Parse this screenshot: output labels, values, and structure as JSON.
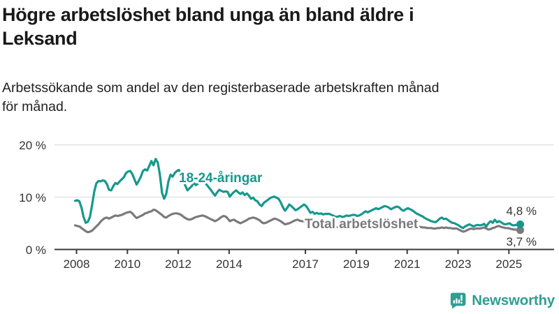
{
  "chart_data": {
    "type": "line",
    "title": "Högre arbetslöshet bland unga än bland äldre i\nLeksand",
    "subtitle": "Arbetssökande som andel av den registerbaserade arbetskraften månad\nför månad.",
    "unit": "%",
    "frequency": "monthly",
    "x_start": "2008-01",
    "x_end": "2025-07",
    "ylim": [
      0,
      22
    ],
    "grid": "horizontal",
    "y_ticks": [
      0,
      10,
      20
    ],
    "y_tick_labels": [
      "0 %",
      "10 %",
      "20 %"
    ],
    "x_ticks": [
      {
        "label": "2008",
        "year": 2008
      },
      {
        "label": "2010",
        "year": 2010
      },
      {
        "label": "2012",
        "year": 2012
      },
      {
        "label": "2014",
        "year": 2014
      },
      {
        "label": "2017",
        "year": 2017
      },
      {
        "label": "2019",
        "year": 2019
      },
      {
        "label": "2021",
        "year": 2021
      },
      {
        "label": "2023",
        "year": 2023
      },
      {
        "label": "2025",
        "year": 2025
      }
    ],
    "series": [
      {
        "name": "Total arbetslöshet",
        "color": "#7a7a7e",
        "end_label": "3,7 %",
        "end_value": 3.7,
        "values": [
          4.6,
          4.5,
          4.4,
          4.1,
          3.8,
          3.5,
          3.3,
          3.4,
          3.6,
          4.0,
          4.4,
          4.8,
          5.3,
          5.7,
          6.0,
          6.1,
          5.9,
          6.1,
          6.3,
          6.5,
          6.4,
          6.5,
          6.6,
          6.8,
          7.0,
          7.1,
          7.2,
          6.9,
          6.4,
          6.0,
          6.2,
          6.4,
          6.6,
          6.9,
          7.0,
          7.2,
          7.3,
          7.6,
          7.5,
          7.2,
          6.9,
          6.6,
          6.2,
          6.1,
          6.4,
          6.6,
          6.8,
          6.9,
          6.9,
          6.8,
          6.6,
          6.3,
          6.0,
          5.8,
          5.7,
          5.8,
          6.0,
          6.2,
          6.3,
          6.4,
          6.5,
          6.4,
          6.2,
          6.0,
          5.8,
          5.6,
          5.4,
          5.6,
          5.9,
          6.2,
          6.4,
          6.3,
          5.9,
          5.4,
          5.6,
          5.7,
          5.4,
          5.2,
          5.0,
          5.2,
          5.4,
          5.6,
          5.9,
          6.0,
          6.1,
          6.0,
          5.8,
          5.6,
          5.2,
          5.0,
          5.1,
          5.3,
          5.5,
          5.7,
          5.9,
          5.8,
          5.6,
          5.4,
          5.1,
          4.8,
          4.9,
          5.0,
          5.2,
          5.4,
          5.6,
          5.7,
          5.5,
          5.4,
          5.4,
          5.5,
          5.3,
          5.1,
          5.0,
          4.9,
          4.8,
          4.7,
          4.8,
          4.9,
          4.8,
          4.7,
          4.6,
          4.5,
          4.4,
          4.3,
          4.3,
          4.2,
          4.2,
          4.3,
          4.4,
          4.5,
          4.5,
          4.6,
          4.6,
          4.5,
          4.5,
          4.4,
          4.4,
          4.5,
          4.6,
          4.6,
          4.7,
          4.8,
          4.8,
          4.9,
          5.0,
          5.1,
          5.3,
          5.5,
          5.5,
          5.4,
          5.3,
          5.2,
          5.2,
          5.1,
          5.0,
          5.0,
          5.0,
          4.9,
          4.8,
          4.7,
          4.6,
          4.5,
          4.4,
          4.3,
          4.2,
          4.2,
          4.1,
          4.1,
          4.1,
          4.0,
          4.0,
          4.1,
          4.1,
          4.2,
          4.1,
          4.2,
          4.1,
          4.1,
          4.0,
          4.0,
          4.0,
          3.8,
          3.6,
          3.4,
          3.5,
          3.7,
          3.9,
          4.0,
          3.9,
          4.0,
          4.0,
          4.0,
          4.1,
          4.2,
          4.0,
          3.8,
          3.9,
          4.1,
          4.2,
          4.4,
          4.5,
          4.3,
          4.2,
          4.1,
          4.1,
          4.0,
          3.9,
          3.8,
          3.8,
          3.7,
          3.7
        ]
      },
      {
        "name": "18-24-åringar",
        "color": "#16988c",
        "end_label": "4,8 %",
        "end_value": 4.8,
        "values": [
          9.3,
          9.4,
          9.2,
          8.0,
          6.2,
          5.1,
          5.3,
          6.2,
          8.5,
          11.0,
          12.6,
          13.1,
          13.0,
          13.2,
          13.1,
          12.5,
          11.4,
          11.3,
          12.1,
          12.7,
          12.5,
          13.0,
          13.4,
          13.8,
          14.6,
          14.9,
          15.0,
          14.4,
          13.4,
          12.4,
          13.1,
          13.9,
          15.0,
          15.3,
          15.1,
          16.0,
          16.9,
          16.1,
          17.3,
          16.6,
          14.3,
          10.8,
          9.7,
          10.6,
          13.0,
          14.3,
          13.9,
          14.6,
          15.0,
          15.2,
          14.3,
          13.3,
          12.2,
          11.3,
          11.7,
          12.1,
          12.7,
          12.3,
          12.6,
          12.8,
          13.0,
          12.8,
          12.4,
          11.9,
          11.4,
          10.8,
          10.3,
          10.9,
          11.4,
          11.2,
          11.0,
          11.1,
          11.0,
          10.1,
          10.6,
          11.0,
          11.3,
          10.9,
          10.6,
          10.9,
          10.4,
          10.7,
          10.3,
          9.7,
          9.9,
          9.4,
          9.2,
          8.6,
          8.3,
          8.9,
          9.2,
          9.5,
          9.8,
          10.0,
          10.1,
          9.9,
          9.7,
          9.0,
          8.1,
          7.4,
          7.9,
          8.6,
          8.3,
          7.9,
          7.5,
          7.7,
          8.0,
          8.3,
          8.6,
          8.3,
          7.7,
          7.0,
          7.2,
          6.8,
          7.0,
          6.8,
          6.9,
          6.7,
          6.8,
          6.8,
          6.8,
          6.6,
          6.4,
          6.2,
          6.3,
          6.4,
          6.2,
          6.3,
          6.5,
          6.4,
          6.5,
          6.6,
          6.6,
          6.4,
          6.5,
          6.7,
          7.0,
          7.3,
          7.1,
          7.3,
          7.5,
          7.7,
          7.9,
          7.7,
          7.9,
          8.1,
          8.3,
          8.2,
          8.0,
          7.7,
          7.9,
          8.1,
          8.2,
          8.0,
          7.6,
          7.4,
          7.7,
          7.9,
          7.7,
          7.5,
          7.2,
          6.9,
          6.7,
          6.5,
          6.3,
          6.0,
          5.8,
          5.6,
          5.4,
          5.3,
          5.2,
          5.5,
          5.9,
          6.1,
          5.8,
          5.9,
          5.6,
          5.3,
          5.1,
          5.0,
          4.8,
          4.6,
          4.3,
          4.1,
          4.4,
          4.6,
          4.8,
          4.6,
          4.4,
          4.6,
          4.7,
          4.6,
          4.7,
          4.9,
          4.4,
          5.0,
          5.4,
          5.1,
          5.7,
          5.2,
          5.4,
          5.2,
          4.9,
          4.8,
          4.9,
          5.0,
          4.7,
          4.6,
          4.7,
          4.6,
          4.8
        ]
      }
    ],
    "colors": {
      "young": "#16988c",
      "total": "#7a7a7e",
      "grid": "#e3e3e3",
      "axis": "#3a3a3a",
      "text": "#333333",
      "title_text": "#191919"
    }
  },
  "footer": {
    "brand": "Newsworthy",
    "logo_icon": "newsworthy-speech-bubble-bar-chart-icon",
    "brand_color": "#2f9e92"
  }
}
